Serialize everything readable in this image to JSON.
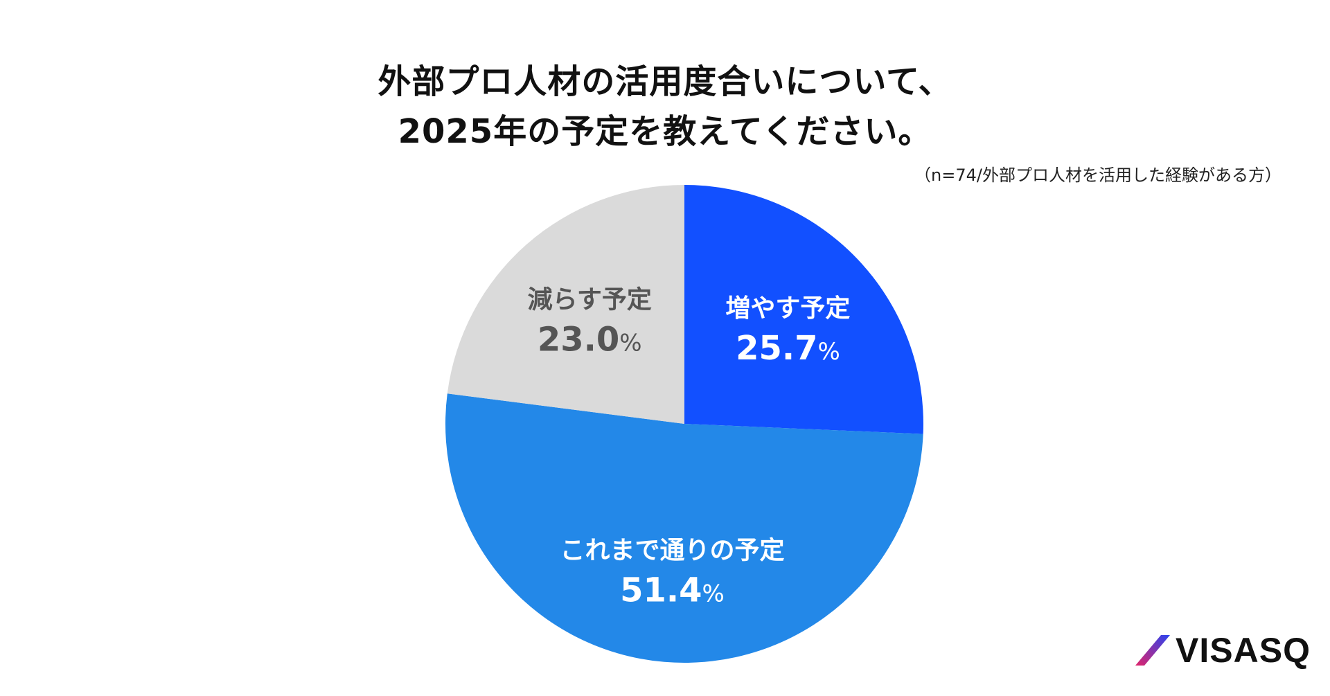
{
  "title_lines": [
    "外部プロ人材の活用度合いについて、",
    "2025年の予定を教えてください。"
  ],
  "subtitle": "（n=74/外部プロ人材を活用した経験がある方）",
  "logo_text": "VISASQ",
  "chart_data": {
    "type": "pie",
    "title": "外部プロ人材の活用度合いについて、2025年の予定を教えてください。",
    "subtitle": "（n=74/外部プロ人材を活用した経験がある方）",
    "unit": "%",
    "start_angle_deg": 0,
    "direction": "clockwise",
    "slices": [
      {
        "label": "増やす予定",
        "value": 25.7,
        "display": "25.7",
        "color": "#1250FF",
        "text_color": "#FFFFFF"
      },
      {
        "label": "これまで通りの予定",
        "value": 51.4,
        "display": "51.4",
        "color": "#2388E8",
        "text_color": "#FFFFFF"
      },
      {
        "label": "減らす予定",
        "value": 23.0,
        "display": "23.0",
        "color": "#DADADA",
        "text_color": "#555555"
      }
    ]
  },
  "colors": {
    "logo_gradient_start": "#E0246A",
    "logo_gradient_end": "#2A44F0"
  }
}
